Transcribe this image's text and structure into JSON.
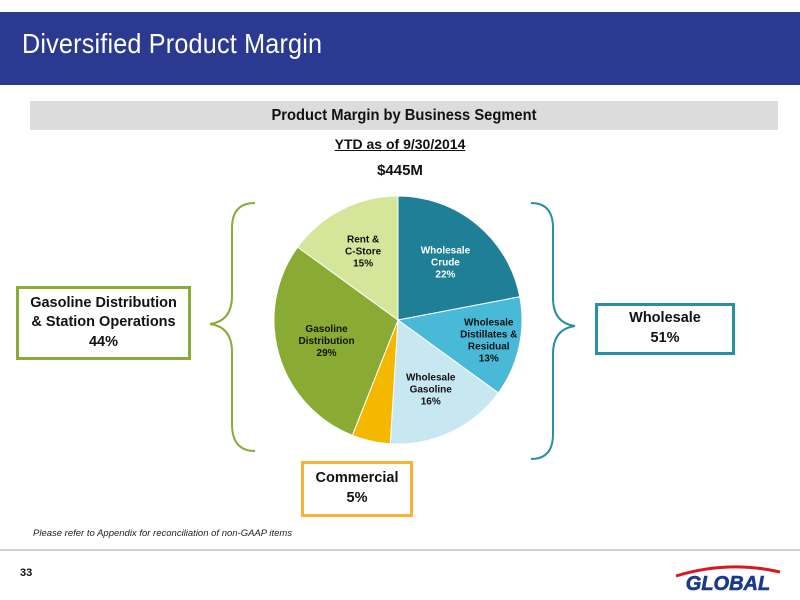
{
  "header": {
    "title": "Diversified Product Margin"
  },
  "chart_data": {
    "type": "pie",
    "title": "Product Margin by Business Segment",
    "subtitle": "YTD as of 9/30/2014",
    "total": "$445M",
    "slices": [
      {
        "label_lines": [
          "Wholesale",
          "Crude"
        ],
        "value": 22,
        "value_label": "22%",
        "color": "#1f7f97",
        "text_color": "#ffffff"
      },
      {
        "label_lines": [
          "Wholesale",
          "Distillates &",
          "Residual"
        ],
        "value": 13,
        "value_label": "13%",
        "color": "#49b9d8",
        "text_color": "#111111"
      },
      {
        "label_lines": [
          "Wholesale",
          "Gasoline"
        ],
        "value": 16,
        "value_label": "16%",
        "color": "#c7e8f1",
        "text_color": "#111111"
      },
      {
        "label_lines": [],
        "value": 5,
        "value_label": "",
        "color": "#f5b800",
        "text_color": "#111111"
      },
      {
        "label_lines": [
          "Gasoline",
          "Distribution"
        ],
        "value": 29,
        "value_label": "29%",
        "color": "#89ab33",
        "text_color": "#111111"
      },
      {
        "label_lines": [
          "Rent &",
          "C-Store"
        ],
        "value": 15,
        "value_label": "15%",
        "color": "#d5e59a",
        "text_color": "#111111"
      }
    ]
  },
  "callouts": {
    "gasoline": {
      "line1": "Gasoline Distribution",
      "line2": "& Station Operations",
      "value": "44%",
      "color": "#8aab38"
    },
    "wholesale": {
      "line1": "Wholesale",
      "value": "51%",
      "color": "#2a8fa4"
    },
    "commercial": {
      "line1": "Commercial",
      "value": "5%",
      "color": "#f5b335"
    }
  },
  "footer": {
    "note": "Please refer to Appendix for reconciliation of non-GAAP items",
    "page_number": "33",
    "logo_text": "GLOBAL"
  }
}
